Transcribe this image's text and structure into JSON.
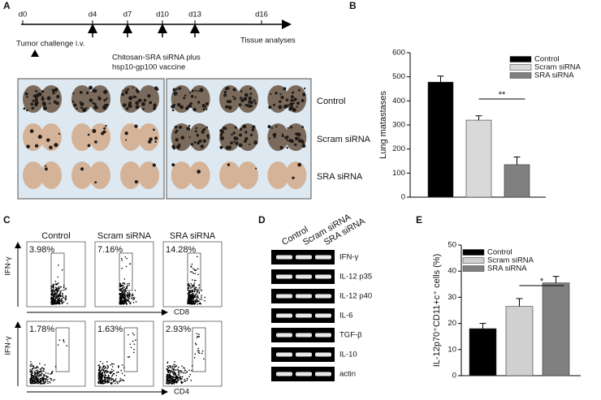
{
  "panel_labels": [
    "A",
    "B",
    "C",
    "D",
    "E"
  ],
  "timeline": {
    "days": [
      "d0",
      "d4",
      "d7",
      "d10",
      "d13",
      "d16"
    ],
    "start_label": "Tumor challenge i.v.",
    "vaccine_label": [
      "Chitosan-SRA siRNA plus",
      "hsp10-gp100 vaccine"
    ],
    "end_label": "Tissue analyses"
  },
  "photo": {
    "rows": [
      "Control",
      "Scram siRNA",
      "SRA siRNA"
    ]
  },
  "flow": {
    "columns": [
      "Control",
      "Scram siRNA",
      "SRA siRNA"
    ],
    "rows": [
      {
        "y_axis": "IFN-γ",
        "x_axis": "CD8",
        "percents": [
          "3.98%",
          "7.16%",
          "14.28%"
        ]
      },
      {
        "y_axis": "IFN-γ",
        "x_axis": "CD4",
        "percents": [
          "1.78%",
          "1.63%",
          "2.93%"
        ]
      }
    ]
  },
  "gel": {
    "lanes": [
      "Control",
      "Scram siRNA",
      "SRA siRNA"
    ],
    "bands": [
      "IFN-γ",
      "IL-12 p35",
      "IL-12 p40",
      "IL-6",
      "TGF-β",
      "IL-10",
      "actin"
    ]
  },
  "chart_data": [
    {
      "type": "bar",
      "ylabel": "Lung matastases",
      "ylim": [
        0,
        600
      ],
      "yticks": [
        0,
        100,
        200,
        300,
        400,
        500,
        600
      ],
      "legend": "top-right",
      "annotation": "**",
      "series": [
        {
          "name": "Control",
          "color": "#000000",
          "values": [
            478
          ],
          "errors": [
            25
          ]
        },
        {
          "name": "Scram siRNA",
          "color": "#d9d9d9",
          "values": [
            320
          ],
          "errors": [
            18
          ]
        },
        {
          "name": "SRA siRNA",
          "color": "#808080",
          "values": [
            135
          ],
          "errors": [
            32
          ]
        }
      ]
    },
    {
      "type": "bar",
      "ylabel": "IL-12p70⁺CD11+c⁺ cells (%)",
      "ylim": [
        0,
        50
      ],
      "yticks": [
        0,
        10,
        20,
        30,
        40,
        50
      ],
      "legend": "top-left",
      "annotation": "*",
      "series": [
        {
          "name": "Control",
          "color": "#000000",
          "values": [
            18
          ],
          "errors": [
            2
          ]
        },
        {
          "name": "Scram siRNA",
          "color": "#d0d0d0",
          "values": [
            26.5
          ],
          "errors": [
            3
          ]
        },
        {
          "name": "SRA siRNA",
          "color": "#808080",
          "values": [
            35.5
          ],
          "errors": [
            2.5
          ]
        }
      ]
    }
  ]
}
